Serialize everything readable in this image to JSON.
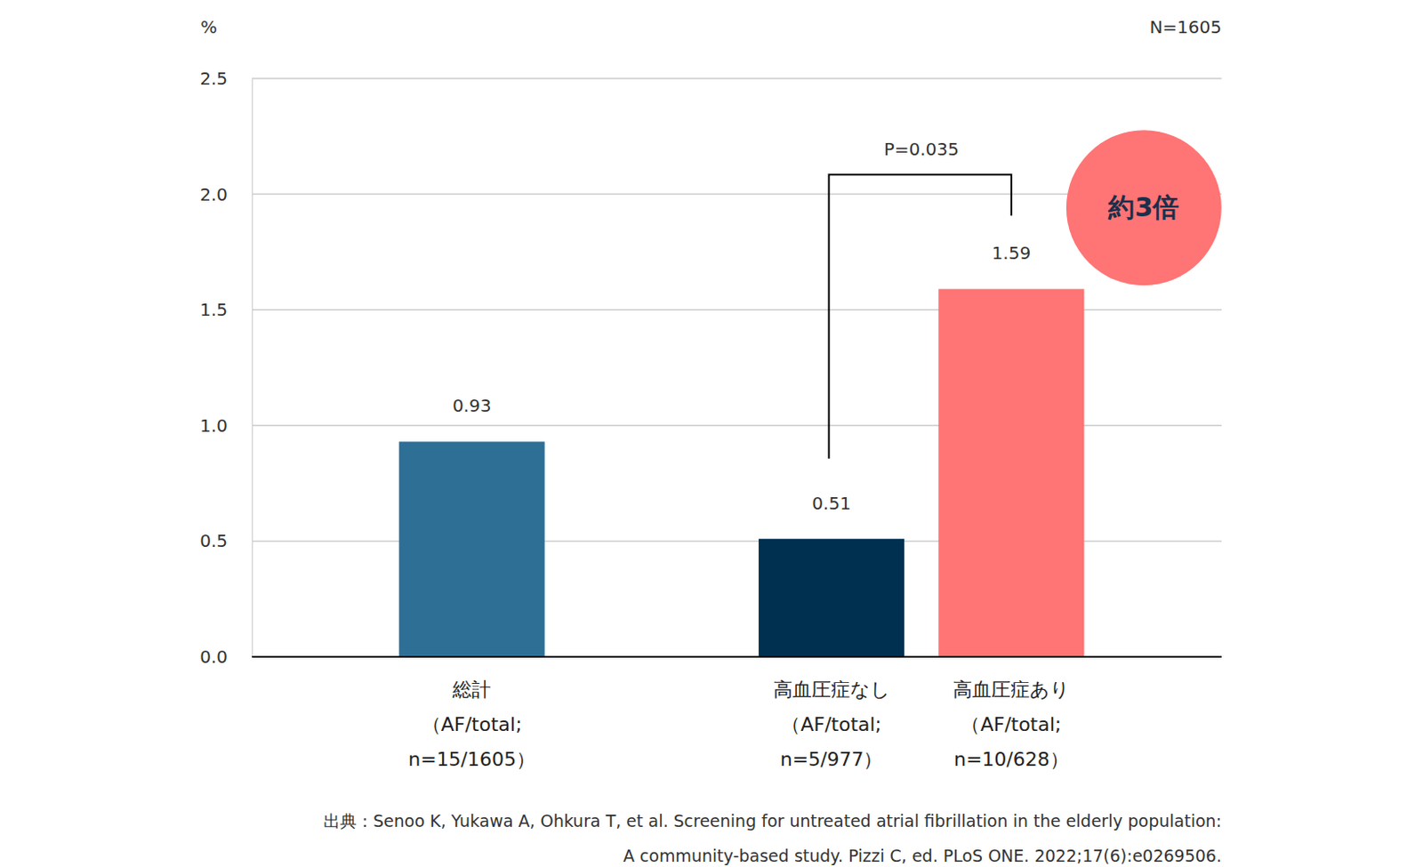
{
  "chart_data": {
    "type": "bar",
    "categories": [
      "総計\n（AF/total;\nn=15/1605）",
      null,
      "高血圧症なし\n（AF/total;\nn=5/977）",
      "高血圧症あり\n（AF/total;\nn=10/628）"
    ],
    "values": [
      0.93,
      null,
      0.51,
      1.59
    ],
    "colors": [
      "#2e6f96",
      null,
      "#003050",
      "#ff7474"
    ],
    "data_labels": true,
    "ylim": [
      0,
      2.5
    ],
    "yticks": [
      {
        "value": 0,
        "label": "0.0"
      },
      {
        "value": 0.5,
        "label": "0.5"
      },
      {
        "value": 1,
        "label": "1.0"
      },
      {
        "value": 1.5,
        "label": "1.5"
      },
      {
        "value": 2,
        "label": "2.0"
      },
      {
        "value": 2.5,
        "label": "2.5"
      }
    ],
    "grid": true,
    "y_unit": "%",
    "sample_size": "N=1605",
    "p_value_label": "P=0.035",
    "ratio_label": "約3倍",
    "source": [
      "出典：Senoo K, Yukawa A, Ohkura T, et al. Screening for untreated atrial fibrillation in the elderly population:",
      "A community-based study. Pizzi C, ed. PLoS ONE. 2022;17(6):e0269506."
    ]
  }
}
